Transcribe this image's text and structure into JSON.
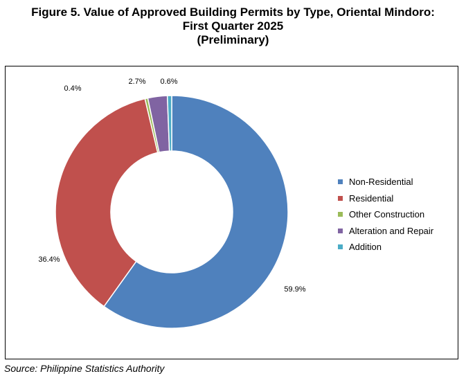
{
  "title": {
    "line1": "Figure 5. Value of Approved Building Permits by Type, Oriental Mindoro:",
    "line2": "First Quarter 2025",
    "line3": "(Preliminary)"
  },
  "source": "Source: Philippine Statistics Authority",
  "chart_data": {
    "type": "pie",
    "variant": "donut",
    "unit": "%",
    "legend_position": "right",
    "categories": [
      "Non-Residential",
      "Residential",
      "Other Construction",
      "Alteration and Repair",
      "Addition"
    ],
    "values": [
      59.9,
      36.4,
      0.4,
      2.7,
      0.6
    ],
    "labels": [
      "59.9%",
      "36.4%",
      "0.4%",
      "2.7%",
      "0.6%"
    ],
    "colors": [
      "#4f81bd",
      "#c0504d",
      "#9bbb59",
      "#8064a2",
      "#4bacc6"
    ]
  }
}
